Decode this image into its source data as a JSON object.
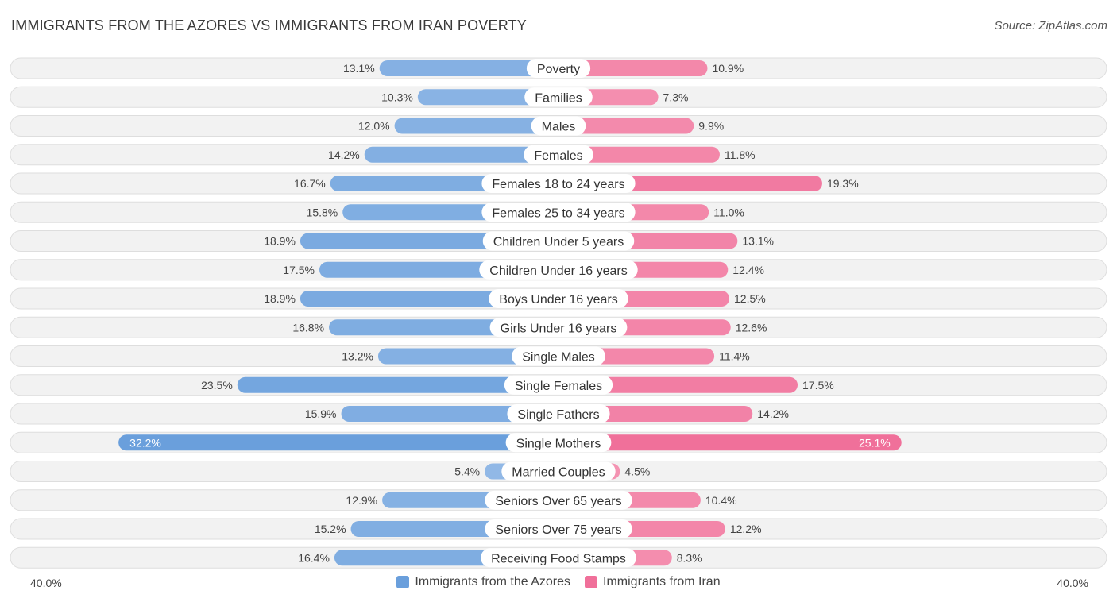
{
  "title": "IMMIGRANTS FROM THE AZORES VS IMMIGRANTS FROM IRAN POVERTY",
  "source": "Source: ZipAtlas.com",
  "colors": {
    "left": "#6a9fdc",
    "left_light": "#a9c8ec",
    "right": "#f0709a",
    "right_light": "#f7a9c1"
  },
  "chart_data": {
    "type": "bar",
    "orientation": "horizontal-diverging",
    "title": "IMMIGRANTS FROM THE AZORES VS IMMIGRANTS FROM IRAN POVERTY",
    "xlim": [
      -40,
      40
    ],
    "axis_left_label": "40.0%",
    "axis_right_label": "40.0%",
    "legend": [
      "Immigrants from the Azores",
      "Immigrants from Iran"
    ],
    "categories": [
      "Poverty",
      "Families",
      "Males",
      "Females",
      "Females 18 to 24 years",
      "Females 25 to 34 years",
      "Children Under 5 years",
      "Children Under 16 years",
      "Boys Under 16 years",
      "Girls Under 16 years",
      "Single Males",
      "Single Females",
      "Single Fathers",
      "Single Mothers",
      "Married Couples",
      "Seniors Over 65 years",
      "Seniors Over 75 years",
      "Receiving Food Stamps"
    ],
    "series": [
      {
        "name": "Immigrants from the Azores",
        "values": [
          13.1,
          10.3,
          12.0,
          14.2,
          16.7,
          15.8,
          18.9,
          17.5,
          18.9,
          16.8,
          13.2,
          23.5,
          15.9,
          32.2,
          5.4,
          12.9,
          15.2,
          16.4
        ],
        "labels": [
          "13.1%",
          "10.3%",
          "12.0%",
          "14.2%",
          "16.7%",
          "15.8%",
          "18.9%",
          "17.5%",
          "18.9%",
          "16.8%",
          "13.2%",
          "23.5%",
          "15.9%",
          "32.2%",
          "5.4%",
          "12.9%",
          "15.2%",
          "16.4%"
        ]
      },
      {
        "name": "Immigrants from Iran",
        "values": [
          10.9,
          7.3,
          9.9,
          11.8,
          19.3,
          11.0,
          13.1,
          12.4,
          12.5,
          12.6,
          11.4,
          17.5,
          14.2,
          25.1,
          4.5,
          10.4,
          12.2,
          8.3
        ],
        "labels": [
          "10.9%",
          "7.3%",
          "9.9%",
          "11.8%",
          "19.3%",
          "11.0%",
          "13.1%",
          "12.4%",
          "12.5%",
          "12.6%",
          "11.4%",
          "17.5%",
          "14.2%",
          "25.1%",
          "4.5%",
          "10.4%",
          "12.2%",
          "8.3%"
        ]
      }
    ]
  }
}
